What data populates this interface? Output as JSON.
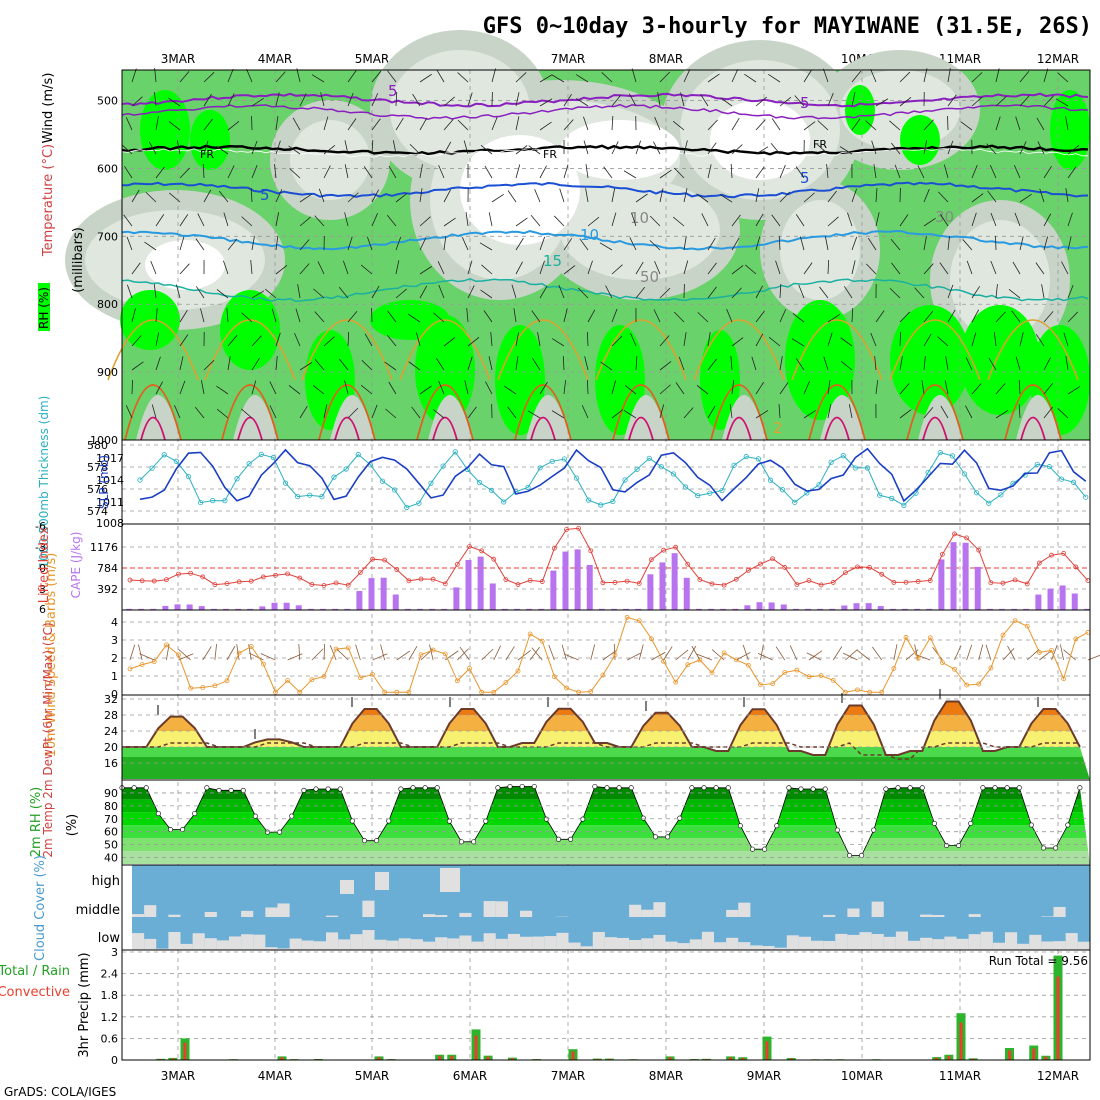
{
  "title": "GFS 0~10day 3-hourly for MAYIWANE (31.5E, 26S)",
  "credit": "GrADS: COLA/IGES",
  "dates": [
    "3MAR",
    "4MAR",
    "5MAR",
    "6MAR",
    "7MAR",
    "8MAR",
    "9MAR",
    "10MAR",
    "11MAR",
    "12MAR"
  ],
  "colors": {
    "green_dark": "#1fc21f",
    "green_bright": "#00ff00",
    "green_mid": "#6ad26a",
    "gray_green": "#c8d4c8",
    "gray_light": "#dfe7df",
    "sky": "#6aaed6",
    "cloud": "#e0e0e0",
    "rain": "#2cb52c",
    "conv": "#e8402c",
    "cape": "#b874ef",
    "li": "#e0403a",
    "slp": "#1a3fc4",
    "thk": "#28b0c0",
    "wind": "#e8962c",
    "barb": "#8a5a3a"
  },
  "panels": {
    "upper": {
      "ylabel_rh": "RH (%)",
      "ylabel_temp": "Temperature (°C)",
      "ylabel_wind": "Wind (m/s)",
      "ylabel_mb": "(millibars)",
      "levels": [
        "500",
        "600",
        "700",
        "800",
        "900",
        "1000"
      ],
      "contour_labels": [
        "5",
        "FR",
        "FR",
        "FR",
        "5",
        "5",
        "5",
        "10",
        "15",
        "30",
        "10",
        "50",
        "2"
      ]
    },
    "slp": {
      "ylabel_left": "1000-500mb Thickness (dm)",
      "ylabel_right": "SLP (mb)",
      "thk_ticks": [
        "580",
        "578",
        "576",
        "574"
      ],
      "slp_ticks": [
        "1017",
        "1014",
        "1011",
        "1008"
      ]
    },
    "li": {
      "ylabel_left": "Lifted Index",
      "ylabel_right": "CAPE (J/kg)",
      "li_ticks": [
        "-6",
        "-3",
        "0",
        "3",
        "6"
      ],
      "cape_ticks": [
        "1176",
        "784",
        "392"
      ]
    },
    "wind": {
      "ylabel": "10m Wind Speed & Barbs (m/s)",
      "ticks": [
        "0",
        "1",
        "2",
        "3",
        "4",
        "5"
      ]
    },
    "temp": {
      "ylabel": "2m Temp 2m DewPt (6hr Min/Max) (°C)",
      "ticks": [
        "16",
        "20",
        "24",
        "28",
        "32"
      ]
    },
    "rh": {
      "ylabel": "2m RH (%)",
      "ticks": [
        "40",
        "50",
        "60",
        "70",
        "80",
        "90"
      ]
    },
    "cloud": {
      "ylabel": "Cloud Cover (%)",
      "levels": [
        "high",
        "middle",
        "low"
      ]
    },
    "precip": {
      "ylabel_left": "Total / Rain Convective",
      "ylabel_right": "3hr Precip (mm)",
      "ticks": [
        "0",
        "0.6",
        "1.2",
        "1.8",
        "2.4",
        "3"
      ],
      "run_total": "Run Total = 9.56"
    }
  },
  "chart_data": [
    {
      "type": "line",
      "title": "1000-500mb Thickness (dm) / SLP (mb)",
      "x": [
        "3MAR",
        "4MAR",
        "5MAR",
        "6MAR",
        "7MAR",
        "8MAR",
        "9MAR",
        "10MAR",
        "11MAR",
        "12MAR"
      ],
      "series": [
        {
          "name": "SLP (mb)",
          "values": [
            1019,
            1016,
            1019,
            1016,
            1018,
            1015,
            1018,
            1014,
            1013,
            1013
          ]
        },
        {
          "name": "1000-500mb Thickness (dm)",
          "values": [
            574,
            576,
            577,
            579,
            578,
            574,
            578,
            576,
            575,
            575
          ]
        }
      ],
      "ylim_left": [
        573,
        580
      ],
      "ylim_right": [
        1008,
        1020
      ]
    },
    {
      "type": "bar",
      "title": "Lifted Index / CAPE (J/kg)",
      "x": [
        "3MAR",
        "4MAR",
        "5MAR",
        "6MAR",
        "7MAR",
        "8MAR",
        "9MAR",
        "10MAR",
        "11MAR",
        "12MAR"
      ],
      "series": [
        {
          "name": "CAPE (J/kg)",
          "values": [
            100,
            120,
            580,
            1030,
            1330,
            1070,
            160,
            110,
            1480,
            580
          ]
        },
        {
          "name": "Lifted Index",
          "values": [
            1,
            1,
            -1,
            -3,
            -6,
            -3,
            -1,
            0,
            -5,
            -2
          ]
        }
      ],
      "ylim": [
        -6,
        6
      ]
    },
    {
      "type": "line",
      "title": "10m Wind Speed (m/s)",
      "x": [
        "3MAR",
        "4MAR",
        "5MAR",
        "6MAR",
        "7MAR",
        "8MAR",
        "9MAR",
        "10MAR",
        "11MAR",
        "12MAR"
      ],
      "series": [
        {
          "name": "Wind speed",
          "values": [
            1.5,
            1.0,
            0.7,
            1.2,
            1.6,
            2.5,
            1.0,
            0.8,
            1.8,
            2.5
          ]
        }
      ],
      "ylim": [
        0,
        5
      ]
    },
    {
      "type": "area",
      "title": "2m Temp (°C)",
      "x": [
        "3MAR",
        "4MAR",
        "5MAR",
        "6MAR",
        "7MAR",
        "8MAR",
        "9MAR",
        "10MAR",
        "11MAR",
        "12MAR"
      ],
      "series": [
        {
          "name": "2m Temp max",
          "values": [
            28,
            22,
            30,
            30,
            30,
            29,
            30,
            31,
            32,
            30
          ]
        },
        {
          "name": "2m Temp min",
          "values": [
            20,
            20,
            20,
            20,
            21,
            20,
            19,
            18,
            19,
            20
          ]
        }
      ],
      "ylim": [
        12,
        33
      ]
    },
    {
      "type": "area",
      "title": "2m RH (%)",
      "x": [
        "3MAR",
        "4MAR",
        "5MAR",
        "6MAR",
        "7MAR",
        "8MAR",
        "9MAR",
        "10MAR",
        "11MAR",
        "12MAR"
      ],
      "series": [
        {
          "name": "2m RH max",
          "values": [
            94,
            92,
            93,
            94,
            95,
            94,
            94,
            93,
            94,
            94
          ]
        },
        {
          "name": "2m RH min",
          "values": [
            60,
            58,
            51,
            50,
            52,
            54,
            44,
            39,
            47,
            45
          ]
        }
      ],
      "ylim": [
        35,
        100
      ]
    },
    {
      "type": "bar",
      "title": "3hr Precip (mm)",
      "x": [
        "3MAR",
        "4MAR",
        "5MAR",
        "6MAR",
        "7MAR",
        "8MAR",
        "9MAR",
        "10MAR",
        "11MAR",
        "12MAR"
      ],
      "series": [
        {
          "name": "Total / Rain",
          "values": [
            0.6,
            0.1,
            0.1,
            0.85,
            0.3,
            0.1,
            0.65,
            0.0,
            1.3,
            2.9
          ]
        }
      ],
      "ylim": [
        0,
        3
      ]
    }
  ]
}
